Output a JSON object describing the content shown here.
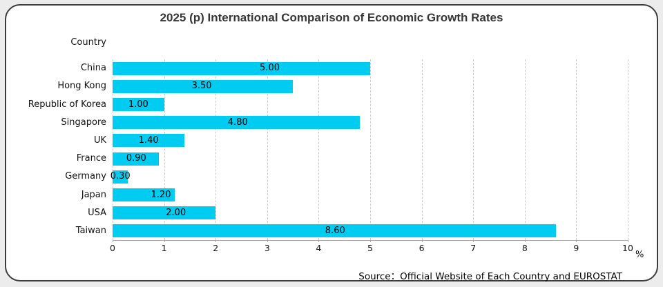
{
  "page": {
    "outer_background": "#ECECEC",
    "card_background": "#FFFFFF",
    "card_border_color": "#3C3C3C"
  },
  "title": "2025 (p) International Comparison of Economic Growth Rates",
  "y_axis_title": "Country",
  "x_axis_unit": "%",
  "source_note": "Source：Official Website of Each Country and EUROSTAT",
  "chart_data": {
    "type": "bar",
    "orientation": "horizontal",
    "title": "2025 (p) International Comparison of Economic Growth Rates",
    "ylabel": "Country",
    "xlabel": "%",
    "xlim": [
      0,
      10
    ],
    "xticks": [
      0,
      1,
      2,
      3,
      4,
      5,
      6,
      7,
      8,
      9,
      10
    ],
    "grid": true,
    "legend": false,
    "categories": [
      "China",
      "Hong Kong",
      "Republic of Korea",
      "Singapore",
      "UK",
      "France",
      "Germany",
      "Japan",
      "USA",
      "Taiwan"
    ],
    "values": [
      5.0,
      3.5,
      1.0,
      4.8,
      1.4,
      0.9,
      0.3,
      1.2,
      2.0,
      8.6
    ],
    "value_labels": [
      "5.00",
      "3.50",
      "1.00",
      "4.80",
      "1.40",
      "0.90",
      "0.30",
      "1.20",
      "2.00",
      "8.60"
    ],
    "value_label_anchor_x": [
      3.05,
      1.73,
      0.5,
      2.43,
      0.7,
      0.46,
      0.15,
      0.94,
      1.23,
      4.32
    ],
    "bar_color": "#00CBF1",
    "gridline_color": "#C9C9C9",
    "axis_line_color": "#A6A6A6"
  }
}
